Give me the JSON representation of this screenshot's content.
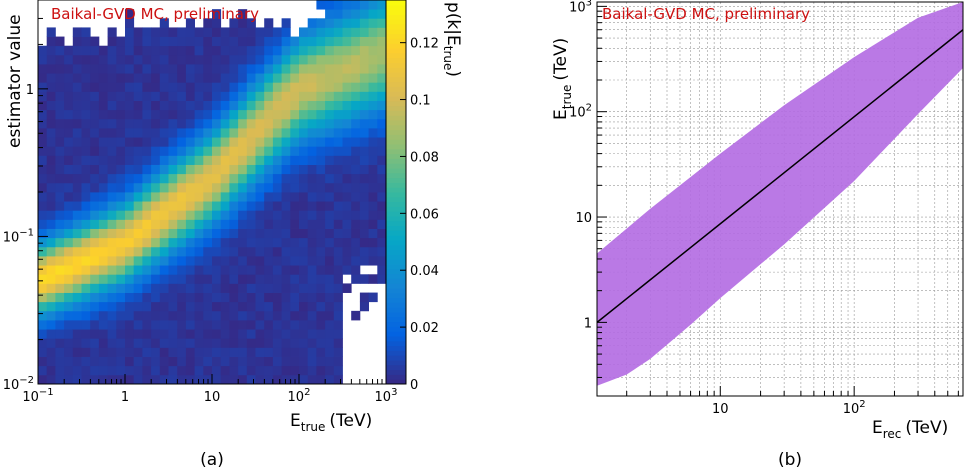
{
  "chart_data": [
    {
      "type": "heatmap",
      "watermark": "Baikal-GVD MC, preliminary",
      "xlabel": "E_true (TeV)",
      "xlabel_main": "E",
      "xlabel_sub": "true",
      "xlabel_unit": "(TeV)",
      "ylabel": "estimator value",
      "zlabel": "p(k|E_true)",
      "zlabel_main": "p(k|E",
      "zlabel_sub": "true",
      "zlabel_close": ")",
      "xscale": "log",
      "yscale": "log",
      "xlim": [
        0.1,
        1000
      ],
      "ylim": [
        0.01,
        4
      ],
      "zlim": [
        0,
        0.135
      ],
      "x_ticks": [
        {
          "v": 0.1,
          "base": "10",
          "exp": "−1"
        },
        {
          "v": 1,
          "base": "1",
          "exp": ""
        },
        {
          "v": 10,
          "base": "10",
          "exp": ""
        },
        {
          "v": 100,
          "base": "10",
          "exp": "2"
        },
        {
          "v": 1000,
          "base": "10",
          "exp": "3"
        }
      ],
      "y_ticks": [
        {
          "v": 0.01,
          "base": "10",
          "exp": "−2"
        },
        {
          "v": 0.1,
          "base": "10",
          "exp": "−1"
        },
        {
          "v": 1,
          "base": "1",
          "exp": ""
        }
      ],
      "z_ticks": [
        "0",
        "0.02",
        "0.04",
        "0.06",
        "0.08",
        "0.1",
        "0.12"
      ],
      "colorscale": [
        "#352a87",
        "#0363e1",
        "#1485d4",
        "#06a7c6",
        "#38b99e",
        "#92bf73",
        "#d9ba56",
        "#fcce2e",
        "#f9fb0e"
      ],
      "ridge": [
        {
          "x": 0.1,
          "y": 0.05
        },
        {
          "x": 1,
          "y": 0.09
        },
        {
          "x": 10,
          "y": 0.25
        },
        {
          "x": 100,
          "y": 1.0
        },
        {
          "x": 1000,
          "y": 1.8
        }
      ],
      "caption": "(a)"
    },
    {
      "type": "area",
      "watermark": "Baikal-GVD MC, preliminary",
      "xlabel": "E_rec (TeV)",
      "xlabel_main": "E",
      "xlabel_sub": "rec",
      "xlabel_unit": "(TeV)",
      "ylabel": "E_true (TeV)",
      "ylabel_main": "E",
      "ylabel_sub": "true",
      "ylabel_unit": "(TeV)",
      "xscale": "log",
      "yscale": "log",
      "xlim": [
        1.2,
        650
      ],
      "ylim": [
        0.2,
        1100
      ],
      "x_ticks": [
        {
          "v": 10,
          "base": "10",
          "exp": ""
        },
        {
          "v": 100,
          "base": "10",
          "exp": "2"
        }
      ],
      "y_ticks": [
        {
          "v": 1,
          "base": "1",
          "exp": ""
        },
        {
          "v": 10,
          "base": "10",
          "exp": ""
        },
        {
          "v": 100,
          "base": "10",
          "exp": "2"
        },
        {
          "v": 1000,
          "base": "10",
          "exp": "3"
        }
      ],
      "band_color": "#b36ae2",
      "line_color": "#000000",
      "line": {
        "x": [
          1.2,
          650
        ],
        "y": [
          1.0,
          600
        ]
      },
      "band_upper": {
        "x": [
          1.2,
          3,
          10,
          30,
          100,
          300,
          650
        ],
        "y": [
          4.5,
          12,
          40,
          115,
          330,
          780,
          1100
        ]
      },
      "band_lower": {
        "x": [
          1.2,
          2,
          3,
          6,
          10,
          30,
          100,
          300,
          650
        ],
        "y": [
          0.25,
          0.32,
          0.45,
          0.95,
          1.7,
          5.5,
          22,
          95,
          260
        ]
      },
      "caption": "(b)"
    }
  ]
}
